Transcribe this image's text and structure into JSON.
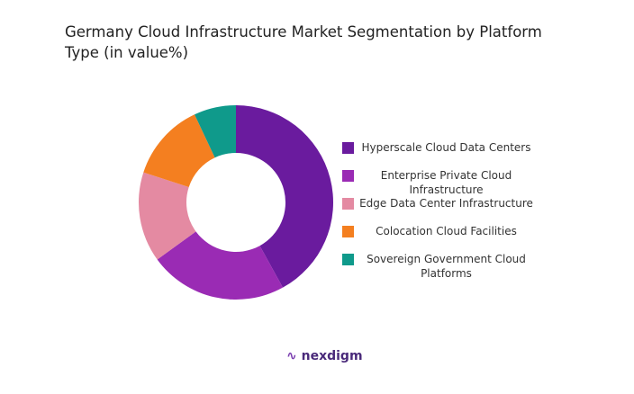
{
  "chart_data": {
    "type": "donut",
    "title": "Germany Cloud Infrastructure Market Segmentation by  Platform Type (in value%)",
    "categories": [
      "Hyperscale Cloud Data Centers",
      "Enterprise Private Cloud Infrastructure",
      "Edge Data Center Infrastructure",
      "Colocation Cloud Facilities",
      "Sovereign Government Cloud Platforms"
    ],
    "values": [
      42,
      23,
      15,
      13,
      7
    ],
    "colors": [
      "#6a1b9e",
      "#9a2bb4",
      "#e48aa2",
      "#f47f20",
      "#0f9a8b"
    ],
    "legend": "right"
  },
  "logo": "nexdigm"
}
